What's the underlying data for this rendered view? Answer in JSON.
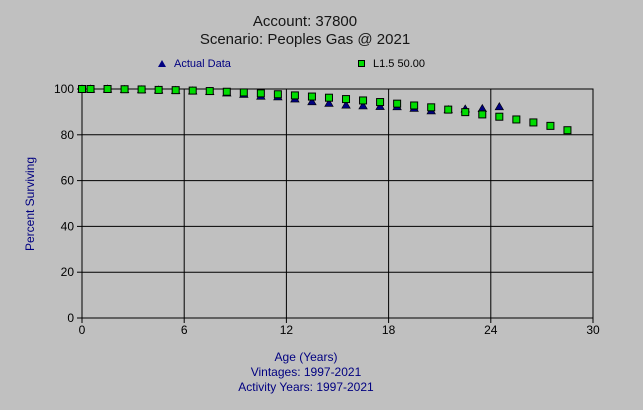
{
  "colors": {
    "background": "#c0c0c0",
    "navy_text": "#000080",
    "title_text": "#161616",
    "tick_text": "#000000",
    "grid_line": "#000000",
    "actual_marker": "#000080",
    "fit_marker": "#00dd00"
  },
  "header": {
    "title_line1": "Account: 37800",
    "title_line2": "Scenario: Peoples Gas @ 2021"
  },
  "legend": {
    "items": [
      {
        "label": "Actual Data",
        "marker": "triangle",
        "color": "#000080",
        "label_color": "#000080"
      },
      {
        "label": "L1.5 50.00",
        "marker": "square",
        "color": "#00dd00",
        "label_color": "#000000"
      }
    ]
  },
  "footer": {
    "xlabel": "Age (Years)",
    "vintages": "Vintages: 1997-2021",
    "activity_years": "Activity Years: 1997-2021"
  },
  "chart_data": {
    "type": "scatter",
    "title": "Account: 37800 — Scenario: Peoples Gas @ 2021",
    "xlabel": "Age (Years)",
    "ylabel": "Percent Surviving",
    "xlim": [
      0,
      30
    ],
    "ylim": [
      0,
      100
    ],
    "xticks": [
      0,
      6,
      12,
      18,
      24,
      30
    ],
    "yticks": [
      0,
      20,
      40,
      60,
      80,
      100
    ],
    "grid": true,
    "legend_position": "top",
    "series": [
      {
        "name": "Actual Data",
        "marker": "triangle",
        "color": "#000080",
        "x": [
          0,
          0.5,
          1.5,
          2.5,
          3.5,
          4.5,
          5.5,
          6.5,
          7.5,
          8.5,
          9.5,
          10.5,
          11.5,
          12.5,
          13.5,
          14.5,
          15.5,
          16.5,
          17.5,
          18.5,
          19.5,
          20.5,
          21.5,
          22.5,
          23.5,
          24.5
        ],
        "y": [
          100,
          100,
          100,
          99.8,
          99.7,
          99.6,
          99.4,
          99.2,
          98.9,
          98.3,
          97.7,
          96.9,
          96.6,
          95.7,
          94.5,
          93.8,
          93.0,
          92.7,
          92.4,
          92.3,
          91.6,
          90.5,
          91.0,
          91.3,
          91.5,
          92.3
        ]
      },
      {
        "name": "L1.5 50.00",
        "marker": "square",
        "color": "#00dd00",
        "x": [
          0,
          0.5,
          1.5,
          2.5,
          3.5,
          4.5,
          5.5,
          6.5,
          7.5,
          8.5,
          9.5,
          10.5,
          11.5,
          12.5,
          13.5,
          14.5,
          15.5,
          16.5,
          17.5,
          18.5,
          19.5,
          20.5,
          21.5,
          22.5,
          23.5,
          24.5,
          25.5,
          26.5,
          27.5,
          28.5
        ],
        "y": [
          100,
          100,
          100,
          99.9,
          99.8,
          99.6,
          99.5,
          99.3,
          99.1,
          98.8,
          98.5,
          98.1,
          97.7,
          97.2,
          96.7,
          96.2,
          95.6,
          95.0,
          94.3,
          93.6,
          92.8,
          92.0,
          91.0,
          89.9,
          88.9,
          87.9,
          86.7,
          85.4,
          83.9,
          82.0
        ]
      }
    ]
  }
}
